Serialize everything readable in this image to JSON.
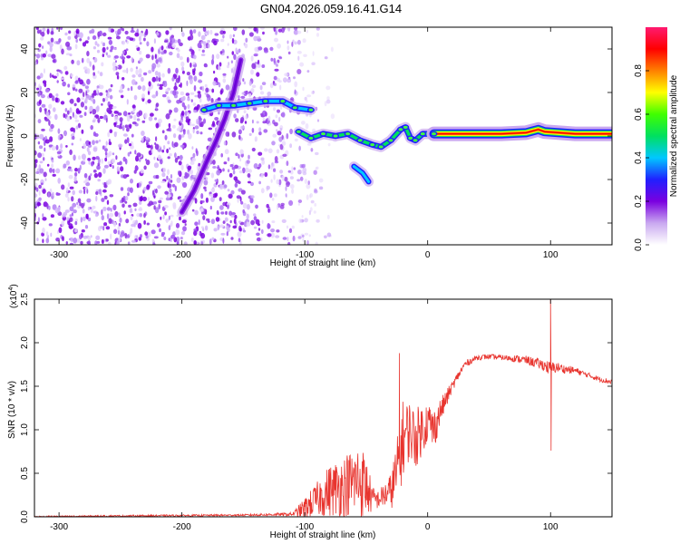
{
  "title": "GN04.2026.059.16.41.G14",
  "chart_data": [
    {
      "type": "heatmap",
      "name": "spectrogram",
      "xlabel": "Height of straight line (km)",
      "ylabel": "Frequency (Hz)",
      "xlim": [
        -320,
        150
      ],
      "ylim": [
        -50,
        50
      ],
      "xticks": [
        -300,
        -200,
        -100,
        0,
        100
      ],
      "yticks": [
        -40,
        -20,
        0,
        20,
        40
      ],
      "colorbar": {
        "label": "Normalized spectral amplitude",
        "range": [
          0,
          1
        ],
        "ticks": [
          "0.0",
          "0.2",
          "0.4",
          "0.6",
          "0.8"
        ],
        "colors": [
          "#ffffff",
          "#c9a8f0",
          "#7a00e0",
          "#2020ff",
          "#00c8ff",
          "#00e060",
          "#40ff00",
          "#ffff00",
          "#ff8000",
          "#ff0000",
          "#ff1a70"
        ]
      },
      "features": {
        "noise_region_x": [
          -320,
          -110
        ],
        "diagonal_trace": [
          [
            -200,
            -35
          ],
          [
            -190,
            -25
          ],
          [
            -180,
            -12
          ],
          [
            -172,
            -2
          ],
          [
            -165,
            8
          ],
          [
            -158,
            20
          ],
          [
            -152,
            35
          ]
        ],
        "upper_trace": [
          [
            -182,
            12
          ],
          [
            -170,
            14
          ],
          [
            -158,
            14
          ],
          [
            -145,
            15
          ],
          [
            -132,
            16
          ],
          [
            -118,
            16
          ],
          [
            -108,
            13
          ],
          [
            -95,
            12
          ]
        ],
        "lower_trace": [
          [
            -105,
            2
          ],
          [
            -95,
            -1
          ],
          [
            -85,
            1
          ],
          [
            -75,
            0
          ],
          [
            -65,
            1
          ],
          [
            -55,
            -2
          ],
          [
            -45,
            -4
          ],
          [
            -38,
            -5
          ],
          [
            -30,
            -2
          ],
          [
            -22,
            3
          ],
          [
            -18,
            4
          ],
          [
            -14,
            -1
          ],
          [
            -10,
            -2
          ],
          [
            -4,
            1
          ],
          [
            5,
            1
          ],
          [
            20,
            1
          ],
          [
            40,
            1
          ],
          [
            60,
            1
          ],
          [
            80,
            1.5
          ],
          [
            90,
            3
          ],
          [
            95,
            2
          ],
          [
            120,
            1
          ],
          [
            150,
            1
          ]
        ],
        "lower_branch": [
          [
            -60,
            -14
          ],
          [
            -53,
            -17
          ],
          [
            -48,
            -21
          ]
        ]
      }
    },
    {
      "type": "line",
      "name": "snr",
      "xlabel": "Height of straight line (km)",
      "ylabel": "SNR (10 * v/v)",
      "scale_note": "(x10",
      "scale_exp": "4",
      "xlim": [
        -320,
        150
      ],
      "ylim": [
        0,
        2.5
      ],
      "xticks": [
        -300,
        -200,
        -100,
        0,
        100
      ],
      "yticks": [
        "0.0",
        "0.5",
        "1.0",
        "1.5",
        "2.0",
        "2.5"
      ],
      "color": "#e8342e",
      "envelope": {
        "x": [
          -320,
          -250,
          -150,
          -110,
          -100,
          -90,
          -80,
          -70,
          -60,
          -55,
          -50,
          -45,
          -40,
          -35,
          -30,
          -25,
          -20,
          -15,
          -10,
          -5,
          0,
          5,
          10,
          20,
          30,
          40,
          50,
          60,
          70,
          80,
          90,
          95,
          100,
          105,
          110,
          120,
          130,
          140,
          150
        ],
        "base": [
          0.0,
          0.01,
          0.02,
          0.03,
          0.1,
          0.2,
          0.3,
          0.35,
          0.4,
          0.42,
          0.35,
          0.2,
          0.2,
          0.25,
          0.3,
          0.5,
          0.9,
          1.0,
          0.9,
          1.0,
          1.1,
          1.0,
          1.2,
          1.5,
          1.75,
          1.83,
          1.84,
          1.83,
          1.82,
          1.8,
          1.76,
          1.74,
          1.7,
          1.72,
          1.7,
          1.68,
          1.63,
          1.58,
          1.55
        ],
        "noise": [
          0.01,
          0.01,
          0.01,
          0.02,
          0.12,
          0.2,
          0.3,
          0.35,
          0.4,
          0.45,
          0.35,
          0.15,
          0.1,
          0.15,
          0.2,
          0.4,
          0.45,
          0.35,
          0.35,
          0.3,
          0.25,
          0.25,
          0.15,
          0.06,
          0.04,
          0.03,
          0.03,
          0.03,
          0.04,
          0.05,
          0.06,
          0.07,
          0.08,
          0.06,
          0.05,
          0.04,
          0.03,
          0.03,
          0.03
        ]
      },
      "spikes": [
        [
          -23,
          1.88
        ],
        [
          100,
          2.5
        ],
        [
          100.4,
          0.76
        ]
      ]
    }
  ]
}
